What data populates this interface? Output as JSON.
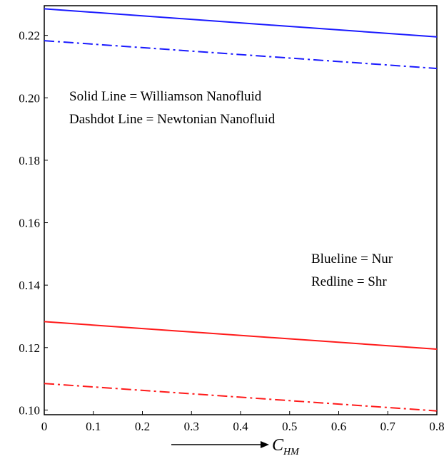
{
  "chart_data": {
    "type": "line",
    "title": "",
    "xlabel": "C",
    "xlabel_subscript": "HM",
    "ylabel": "",
    "xlim": [
      0,
      0.8
    ],
    "ylim": [
      0.0985,
      0.2295
    ],
    "x_ticks": [
      "0",
      "0.1",
      "0.2",
      "0.3",
      "0.4",
      "0.5",
      "0.6",
      "0.7",
      "0.8"
    ],
    "x_tick_values": [
      0,
      0.1,
      0.2,
      0.3,
      0.4,
      0.5,
      0.6,
      0.7,
      0.8
    ],
    "y_ticks": [
      "0.10",
      "0.12",
      "0.14",
      "0.16",
      "0.18",
      "0.20",
      "0.22"
    ],
    "y_tick_values": [
      0.1,
      0.12,
      0.14,
      0.16,
      0.18,
      0.2,
      0.22
    ],
    "grid": false,
    "annotations": [
      "Solid Line = Williamson Nanofluid",
      "Dashdot Line = Newtonian Nanofluid",
      "Blueline = Nur",
      "Redline = Shr"
    ],
    "series": [
      {
        "color": "#1a1aff",
        "dash": "solid",
        "x": [
          0,
          0.8
        ],
        "values": [
          0.2285,
          0.2195
        ]
      },
      {
        "color": "#1a1aff",
        "dash": "dashdot",
        "x": [
          0,
          0.8
        ],
        "values": [
          0.2183,
          0.2094
        ]
      },
      {
        "color": "#ff1a1a",
        "dash": "solid",
        "x": [
          0,
          0.8
        ],
        "values": [
          0.1283,
          0.1195
        ]
      },
      {
        "color": "#ff1a1a",
        "dash": "dashdot",
        "x": [
          0,
          0.8
        ],
        "values": [
          0.1085,
          0.0997
        ]
      }
    ]
  }
}
